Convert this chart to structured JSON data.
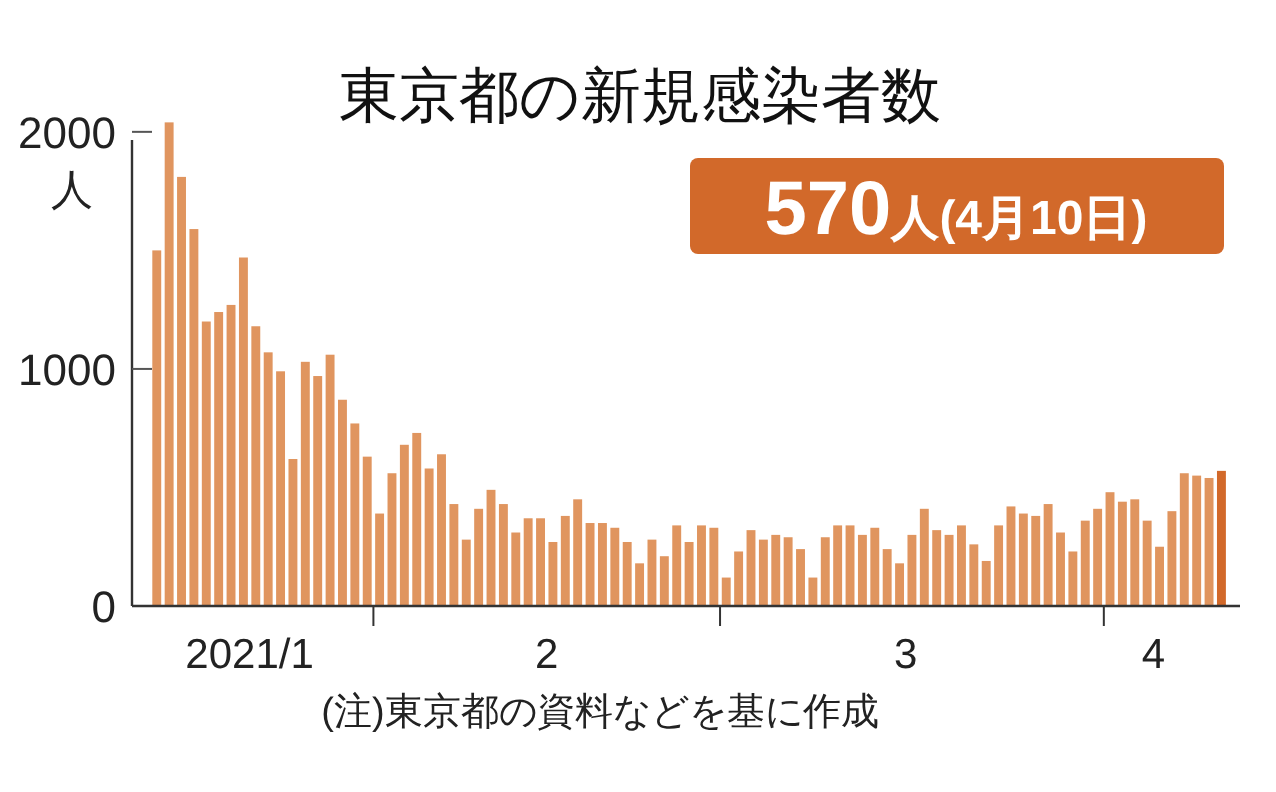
{
  "chart_data": {
    "type": "bar",
    "title": "東京都の新規感染者数",
    "ylabel": "人",
    "annotations": [
      "570人(4月10日)",
      "(注)東京都の資料などを基に作成"
    ],
    "x": [
      "2021-01-14",
      "2021-01-15",
      "2021-01-16",
      "2021-01-17",
      "2021-01-18",
      "2021-01-19",
      "2021-01-20",
      "2021-01-21",
      "2021-01-22",
      "2021-01-23",
      "2021-01-24",
      "2021-01-25",
      "2021-01-26",
      "2021-01-27",
      "2021-01-28",
      "2021-01-29",
      "2021-01-30",
      "2021-01-31",
      "2021-02-01",
      "2021-02-02",
      "2021-02-03",
      "2021-02-04",
      "2021-02-05",
      "2021-02-06",
      "2021-02-07",
      "2021-02-08",
      "2021-02-09",
      "2021-02-10",
      "2021-02-11",
      "2021-02-12",
      "2021-02-13",
      "2021-02-14",
      "2021-02-15",
      "2021-02-16",
      "2021-02-17",
      "2021-02-18",
      "2021-02-19",
      "2021-02-20",
      "2021-02-21",
      "2021-02-22",
      "2021-02-23",
      "2021-02-24",
      "2021-02-25",
      "2021-02-26",
      "2021-02-27",
      "2021-02-28",
      "2021-03-01",
      "2021-03-02",
      "2021-03-03",
      "2021-03-04",
      "2021-03-05",
      "2021-03-06",
      "2021-03-07",
      "2021-03-08",
      "2021-03-09",
      "2021-03-10",
      "2021-03-11",
      "2021-03-12",
      "2021-03-13",
      "2021-03-14",
      "2021-03-15",
      "2021-03-16",
      "2021-03-17",
      "2021-03-18",
      "2021-03-19",
      "2021-03-20",
      "2021-03-21",
      "2021-03-22",
      "2021-03-23",
      "2021-03-24",
      "2021-03-25",
      "2021-03-26",
      "2021-03-27",
      "2021-03-28",
      "2021-03-29",
      "2021-03-30",
      "2021-03-31",
      "2021-04-01",
      "2021-04-02",
      "2021-04-03",
      "2021-04-04",
      "2021-04-05",
      "2021-04-06",
      "2021-04-07",
      "2021-04-08",
      "2021-04-09",
      "2021-04-10"
    ],
    "values": [
      1500,
      2040,
      1810,
      1590,
      1200,
      1240,
      1270,
      1470,
      1180,
      1070,
      990,
      620,
      1030,
      970,
      1060,
      870,
      770,
      630,
      390,
      560,
      680,
      730,
      580,
      640,
      430,
      280,
      410,
      490,
      430,
      310,
      370,
      370,
      270,
      380,
      450,
      350,
      350,
      330,
      270,
      180,
      280,
      210,
      340,
      270,
      340,
      330,
      120,
      230,
      320,
      280,
      300,
      290,
      240,
      120,
      290,
      340,
      340,
      300,
      330,
      240,
      180,
      300,
      410,
      320,
      300,
      340,
      260,
      190,
      340,
      420,
      390,
      380,
      430,
      310,
      230,
      360,
      410,
      480,
      440,
      450,
      360,
      250,
      400,
      560,
      550,
      540,
      570
    ],
    "colors": [
      "#e0955f",
      "#e0955f",
      "#e0955f",
      "#e0955f",
      "#e0955f",
      "#e0955f",
      "#e0955f",
      "#e0955f",
      "#e0955f",
      "#e0955f",
      "#e0955f",
      "#e0955f",
      "#e0955f",
      "#e0955f",
      "#e0955f",
      "#e0955f",
      "#e0955f",
      "#e0955f",
      "#e0955f",
      "#e0955f",
      "#e0955f",
      "#e0955f",
      "#e0955f",
      "#e0955f",
      "#e0955f",
      "#e0955f",
      "#e0955f",
      "#e0955f",
      "#e0955f",
      "#e0955f",
      "#e0955f",
      "#e0955f",
      "#e0955f",
      "#e0955f",
      "#e0955f",
      "#e0955f",
      "#e0955f",
      "#e0955f",
      "#e0955f",
      "#e0955f",
      "#e0955f",
      "#e0955f",
      "#e0955f",
      "#e0955f",
      "#e0955f",
      "#e0955f",
      "#e0955f",
      "#e0955f",
      "#e0955f",
      "#e0955f",
      "#e0955f",
      "#e0955f",
      "#e0955f",
      "#e0955f",
      "#e0955f",
      "#e0955f",
      "#e0955f",
      "#e0955f",
      "#e0955f",
      "#e0955f",
      "#e0955f",
      "#e0955f",
      "#e0955f",
      "#e0955f",
      "#e0955f",
      "#e0955f",
      "#e0955f",
      "#e0955f",
      "#e0955f",
      "#e0955f",
      "#e0955f",
      "#e0955f",
      "#e0955f",
      "#e0955f",
      "#e0955f",
      "#e0955f",
      "#e0955f",
      "#e0955f",
      "#e0955f",
      "#e0955f",
      "#e0955f",
      "#e0955f",
      "#e0955f",
      "#e0955f",
      "#e0955f",
      "#e0955f",
      "#d2692a"
    ],
    "xlim": [
      "2021-01-12T12:00",
      "2021-04-12T00:00"
    ],
    "xticks": [
      {
        "value": "2021-02-01",
        "label": null
      },
      {
        "value": "2021-03-01",
        "label": null
      },
      {
        "value": "2021-04-01",
        "label": null
      },
      {
        "value": "2021-01-22",
        "label": "2021/1"
      },
      {
        "value": "2021-02-15",
        "label": "2"
      },
      {
        "value": "2021-03-16",
        "label": "3"
      },
      {
        "value": "2021-04-05",
        "label": "4"
      }
    ],
    "ylim": [
      0,
      2050
    ],
    "yticks": [
      0,
      1000,
      2000
    ]
  }
}
